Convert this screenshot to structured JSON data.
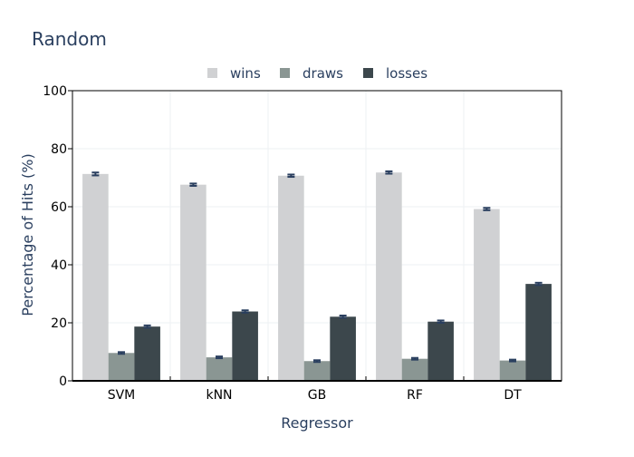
{
  "chart_data": {
    "type": "bar",
    "title": "Random",
    "xlabel": "Regressor",
    "ylabel": "Percentage of Hits (%)",
    "ylim": [
      0,
      100
    ],
    "yticks": [
      "0",
      "20",
      "40",
      "60",
      "80",
      "100"
    ],
    "grid": true,
    "legend_position": "top-center",
    "categories": [
      "SVM",
      "kNN",
      "GB",
      "RF",
      "DT"
    ],
    "series": [
      {
        "name": "wins",
        "color": "#d0d1d3",
        "values": [
          71.3,
          67.6,
          70.7,
          71.8,
          59.2
        ],
        "error": [
          0.5,
          0.4,
          0.4,
          0.4,
          0.4
        ]
      },
      {
        "name": "draws",
        "color": "#8a9693",
        "values": [
          9.6,
          8.1,
          6.8,
          7.6,
          7.0
        ],
        "error": [
          0.3,
          0.3,
          0.3,
          0.3,
          0.3
        ]
      },
      {
        "name": "losses",
        "color": "#3c474c",
        "values": [
          18.7,
          23.9,
          22.1,
          20.4,
          33.4
        ],
        "error": [
          0.4,
          0.4,
          0.4,
          0.4,
          0.4
        ]
      }
    ],
    "error_bar_color": "#2a3f5f"
  }
}
